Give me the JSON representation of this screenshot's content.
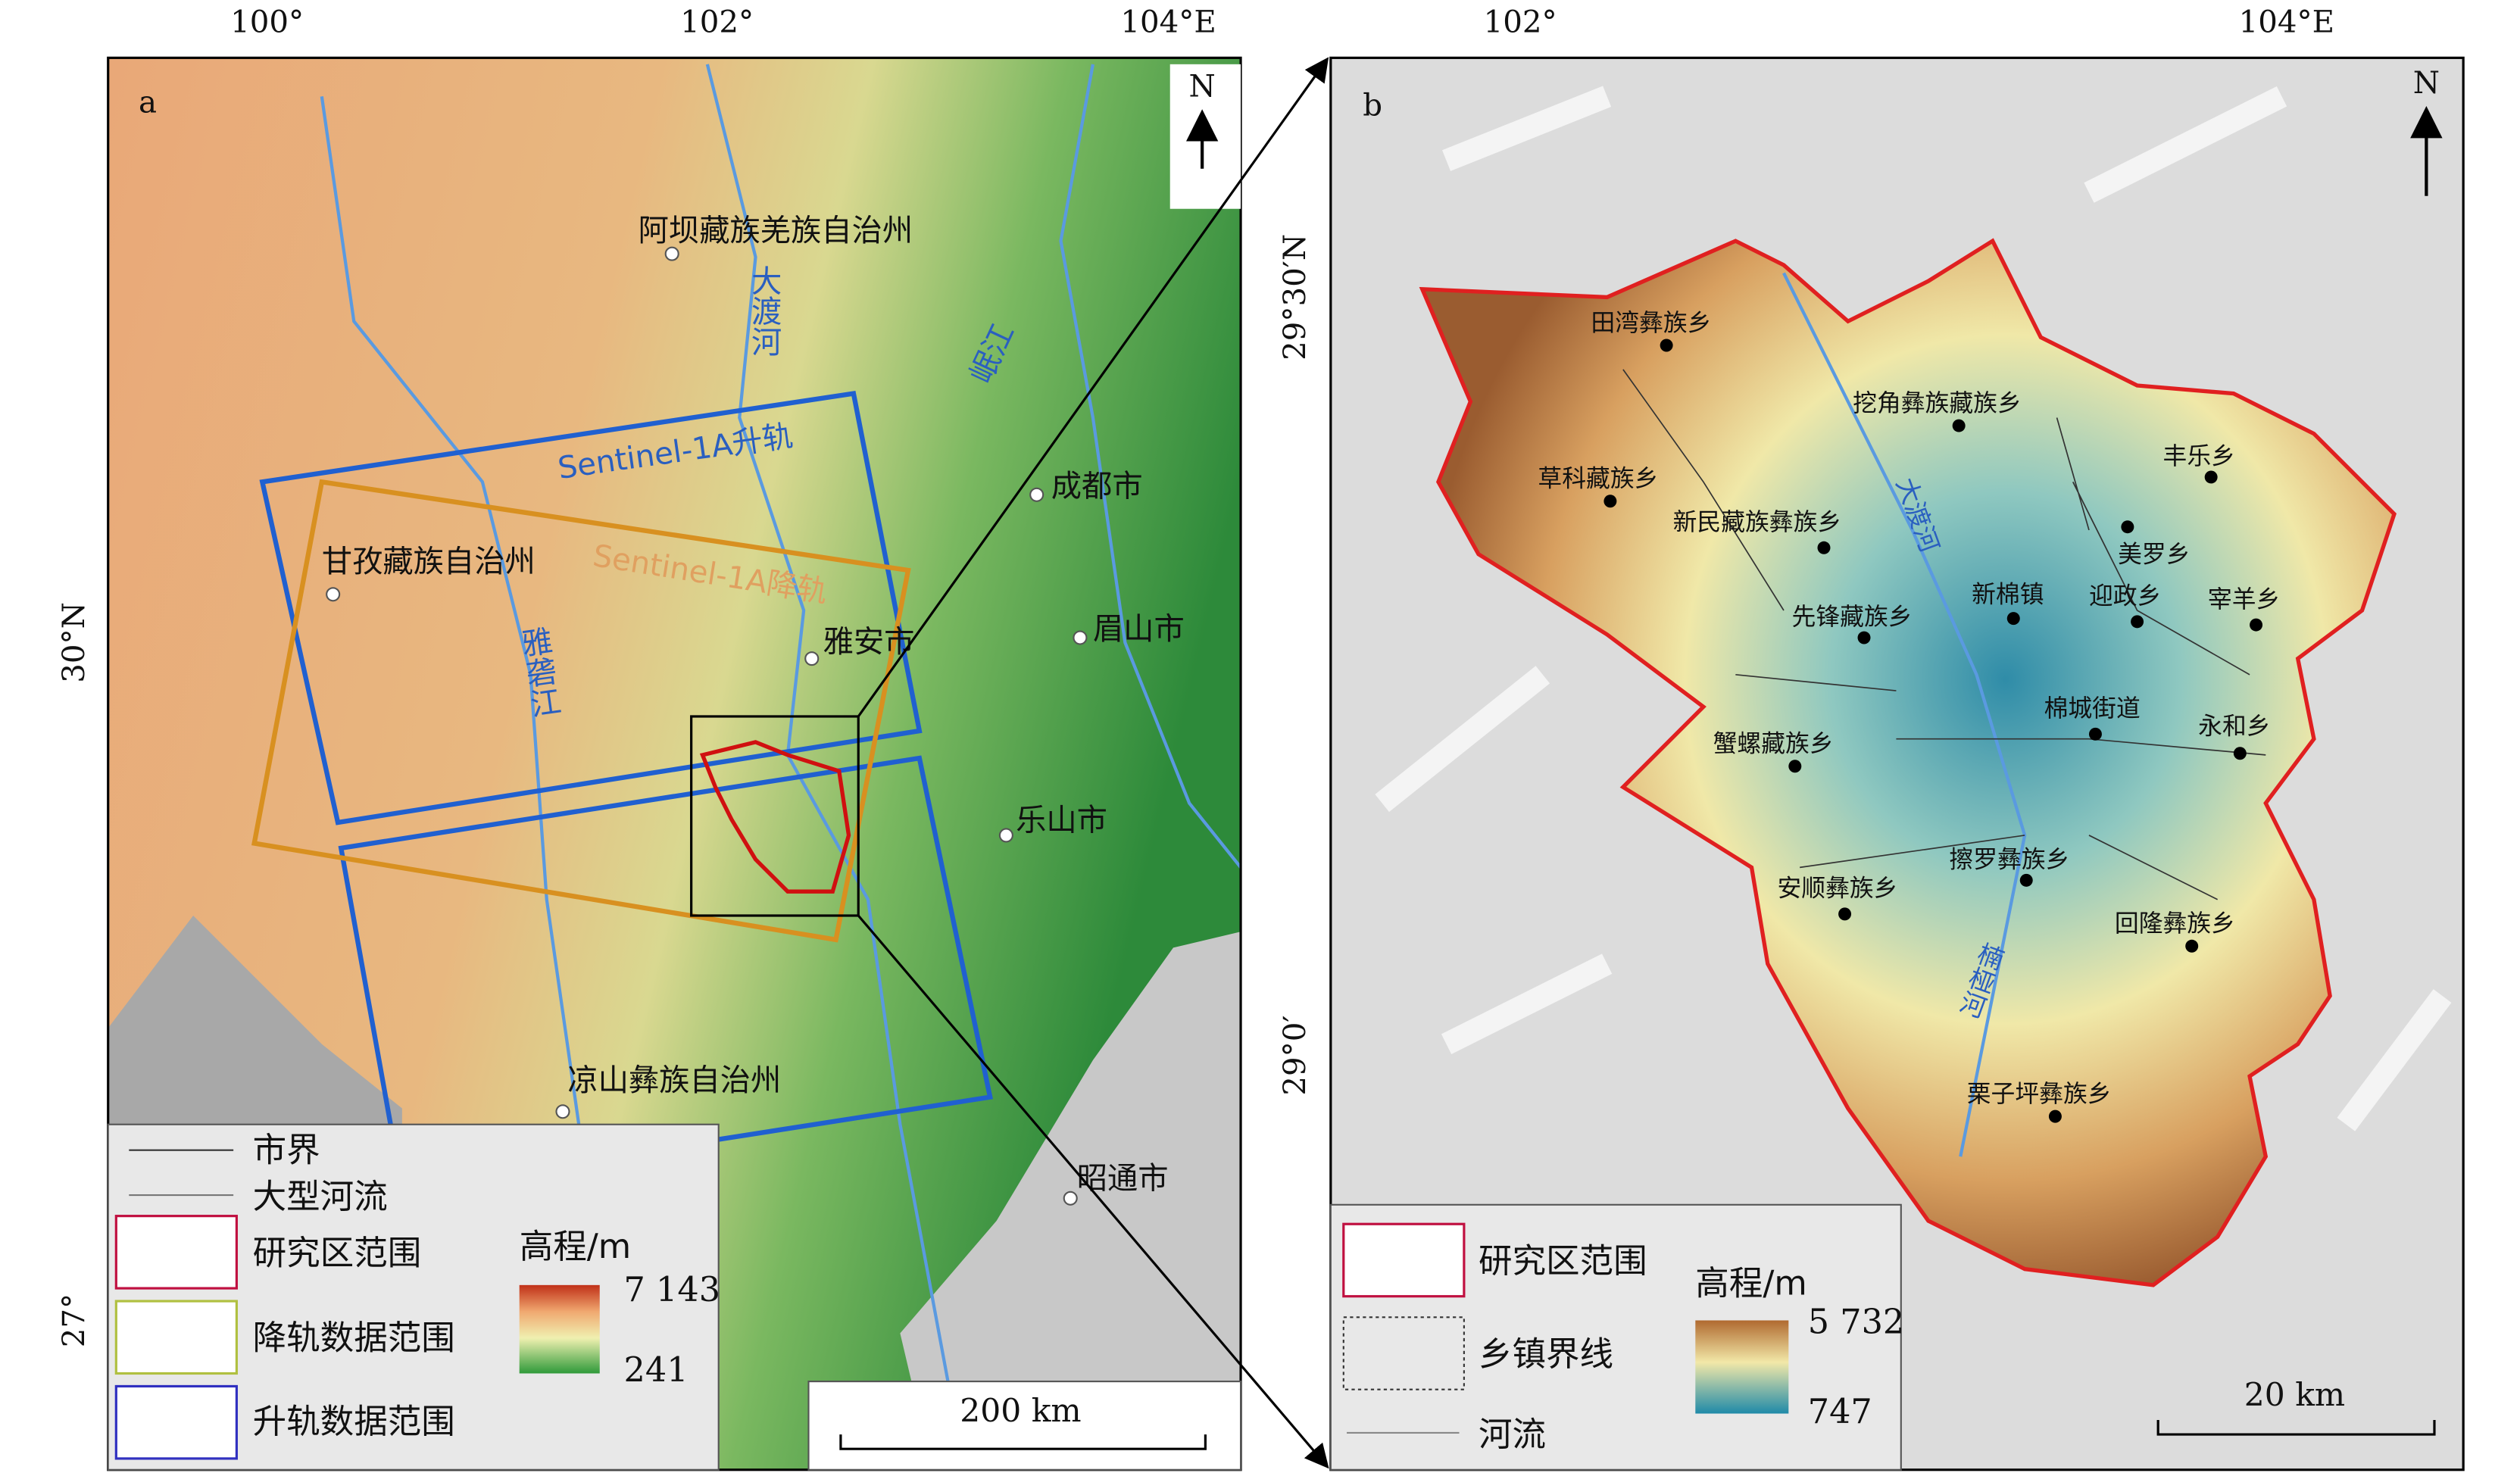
{
  "panel_a": {
    "label": "a",
    "lon_ticks": [
      "100°",
      "102°",
      "104°E"
    ],
    "lat_ticks": [
      "30°N",
      "27°"
    ],
    "north": "N",
    "places": [
      "阿坝藏族羌族自治州",
      "甘孜藏族自治州",
      "雅安市",
      "成都市",
      "眉山市",
      "乐山市",
      "凉山彝族自治州",
      "昭通市"
    ],
    "rivers": [
      "大渡河",
      "岷江",
      "雅砻江"
    ],
    "swaths": [
      "Sentinel-1A升轨",
      "Sentinel-1A降轨"
    ],
    "legend": {
      "items": [
        "市界",
        "大型河流",
        "研究区范围",
        "降轨数据范围",
        "升轨数据范围"
      ],
      "elevation_title": "高程/m",
      "elevation_max": "7 143",
      "elevation_min": "241"
    },
    "scale_bar": "200 km"
  },
  "panel_b": {
    "label": "b",
    "lon_ticks": [
      "102°",
      "104°E"
    ],
    "lat_ticks": [
      "29°30′N",
      "29°0′"
    ],
    "north": "N",
    "places": [
      "田湾彝族乡",
      "挖角彝族藏族乡",
      "丰乐乡",
      "草科藏族乡",
      "新民藏族彝族乡",
      "美罗乡",
      "新棉镇",
      "迎政乡",
      "宰羊乡",
      "先锋藏族乡",
      "棉城街道",
      "永和乡",
      "蟹螺藏族乡",
      "擦罗彝族乡",
      "安顺彝族乡",
      "回隆彝族乡",
      "栗子坪彝族乡"
    ],
    "rivers": [
      "大渡河",
      "楠桠河"
    ],
    "legend": {
      "items": [
        "研究区范围",
        "乡镇界线",
        "河流"
      ],
      "elevation_title": "高程/m",
      "elevation_max": "5 732",
      "elevation_min": "747"
    },
    "scale_bar": "20 km"
  }
}
